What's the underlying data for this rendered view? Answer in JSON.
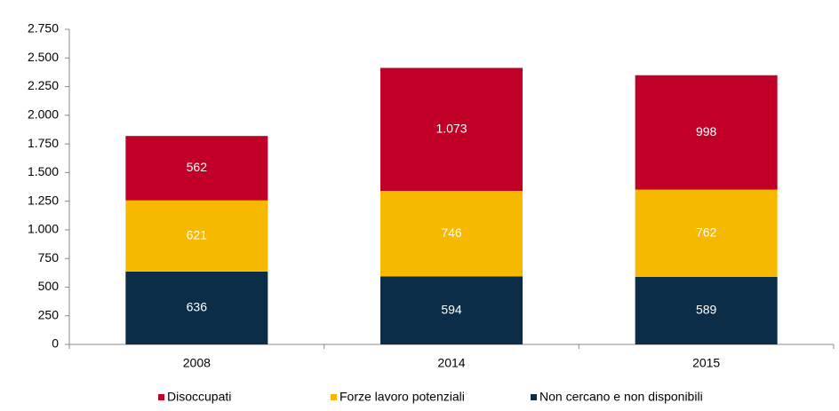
{
  "chart_data": {
    "type": "stacked_bar",
    "categories": [
      "2008",
      "2014",
      "2015"
    ],
    "series": [
      {
        "name": "Disoccupati",
        "color": "#c00027",
        "values": [
          562,
          1073,
          998
        ],
        "value_labels": [
          "562",
          "1.073",
          "998"
        ]
      },
      {
        "name": "Forze lavoro potenziali",
        "color": "#f7b800",
        "values": [
          621,
          746,
          762
        ]
      },
      {
        "name": "Non cercano e non disponibili",
        "color": "#0b2d48",
        "values": [
          636,
          594,
          589
        ]
      }
    ],
    "ylim": [
      0,
      2750
    ],
    "yticks": [
      0,
      250,
      500,
      750,
      {
        "value": 1000,
        "label": "1.000"
      },
      {
        "value": 1250,
        "label": "1.250"
      },
      {
        "value": 1500,
        "label": "1.500"
      },
      {
        "value": 1750,
        "label": "1.750"
      },
      {
        "value": 2000,
        "label": "2.000"
      },
      {
        "value": 2250,
        "label": "2.250"
      },
      {
        "value": 2500,
        "label": "2.500"
      },
      {
        "value": 2750,
        "label": "2.750"
      }
    ],
    "legend": "bottom"
  }
}
